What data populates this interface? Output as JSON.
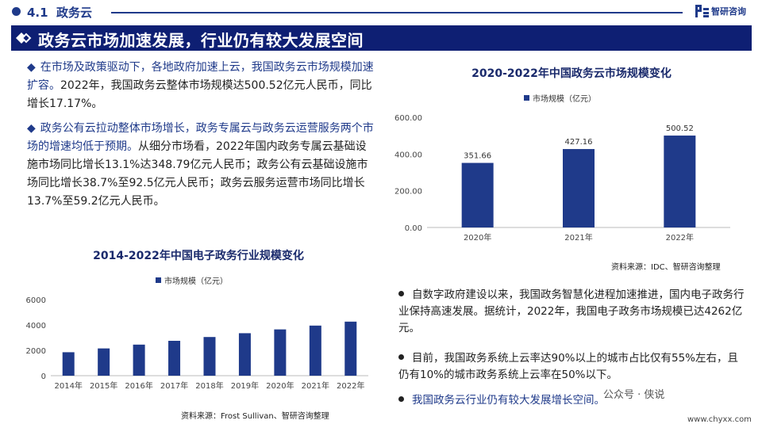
{
  "header": {
    "section_number": "4.1",
    "section_title": "政务云",
    "brand_name": "智研咨询"
  },
  "banner": {
    "title": "政务云市场加速发展，行业仍有较大发展空间"
  },
  "left_text": {
    "p1_highlight": "在市场及政策驱动下，各地政府加速上云，我国政务云市场规模加速扩容。",
    "p1_rest": "2022年，我国政务云整体市场规模达500.52亿元人民币，同比增长17.17%。",
    "p2_highlight": "政务公有云拉动整体市场增长，政务专属云与政务云运营服务两个市场的增速均低于预期。",
    "p2_rest": "从细分市场看，2022年国内政务专属云基础设施市场同比增长13.1%达348.79亿元人民币；政务公有云基础设施市场同比增长38.7%至92.5亿元人民币；政务云服务运营市场同比增长13.7%至59.2亿元人民币。"
  },
  "chart_data": [
    {
      "type": "bar",
      "title": "2020-2022年中国政务云市场规模变化",
      "series": [
        {
          "name": "市场规模（亿元）",
          "values": [
            351.66,
            427.16,
            500.52
          ]
        }
      ],
      "categories": [
        "2020年",
        "2021年",
        "2022年"
      ],
      "data_labels": [
        "351.66",
        "427.16",
        "500.52"
      ],
      "yticks": [
        "0.00",
        "200.00",
        "400.00",
        "600.00"
      ],
      "ylim": [
        0,
        600
      ],
      "grid": false,
      "legend": "top-left",
      "bar_color": "#1f3a8a",
      "source": "资料来源：IDC、智研咨询整理"
    },
    {
      "type": "bar",
      "title": "2014-2022年中国电子政务行业规模变化",
      "series": [
        {
          "name": "市场规模（亿元）",
          "values": [
            1850,
            2150,
            2450,
            2750,
            3050,
            3350,
            3650,
            3950,
            4262
          ]
        }
      ],
      "categories": [
        "2014年",
        "2015年",
        "2016年",
        "2017年",
        "2018年",
        "2019年",
        "2020年",
        "2021年",
        "2022年"
      ],
      "yticks": [
        "0",
        "2000",
        "4000",
        "6000"
      ],
      "ylim": [
        0,
        6000
      ],
      "grid": false,
      "legend": "top-left",
      "bar_color": "#1f3a8a",
      "source": "资料来源：Frost Sullivan、智研咨询整理"
    }
  ],
  "right_bullets": [
    {
      "text": "自数字政府建设以来，我国政务智慧化进程加速推进，国内电子政务行业保持高速发展。据统计，2022年，我国电子政务市场规模已达4262亿元。",
      "highlight": false
    },
    {
      "text": "目前，我国政务系统上云率达90%以上的城市占比仅有55%左右，且仍有10%的城市政务系统上云率在50%以下。",
      "highlight": false
    },
    {
      "text": "我国政务云行业仍有较大发展增长空间。",
      "highlight": true
    }
  ],
  "watermark": "公众号 · 侠说",
  "site": "www.chyxx.com"
}
